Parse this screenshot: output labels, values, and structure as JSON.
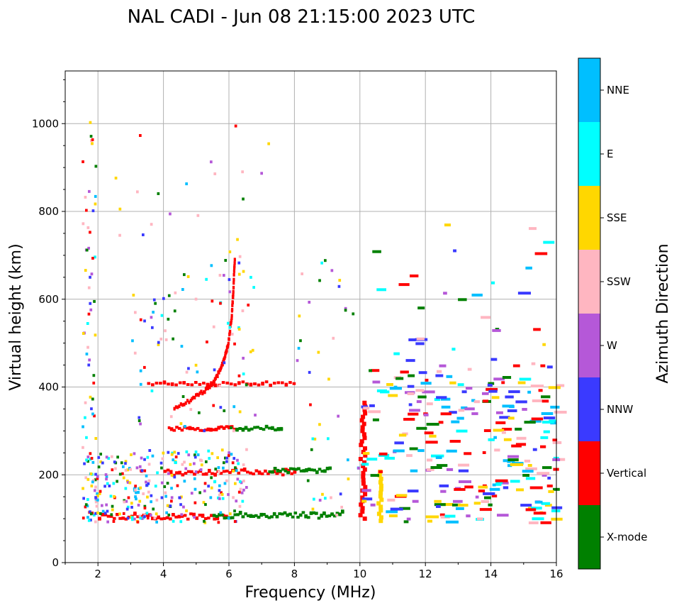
{
  "chart_data": {
    "type": "scatter",
    "title": "NAL CADI - Jun 08 21:15:00 2023 UTC",
    "xlabel": "Frequency (MHz)",
    "ylabel": "Virtual height (km)",
    "xlim": [
      1,
      16
    ],
    "ylim": [
      0,
      1120
    ],
    "x_ticks": [
      2,
      4,
      6,
      8,
      10,
      12,
      14,
      16
    ],
    "y_ticks": [
      0,
      200,
      400,
      600,
      800,
      1000
    ],
    "grid": true,
    "colorbar": {
      "label": "Azimuth Direction",
      "categories": [
        "X-mode",
        "Vertical",
        "NNW",
        "W",
        "SSW",
        "SSE",
        "E",
        "NNE"
      ],
      "colors": [
        "#008000",
        "#ff0000",
        "#3a3aff",
        "#b558d8",
        "#ffb6c1",
        "#ffd700",
        "#00ffff",
        "#00bfff"
      ]
    },
    "traces": [
      {
        "direction": "Vertical",
        "f": [
          2.0,
          6.0
        ],
        "h": 105,
        "step": 0.09,
        "dh": 12
      },
      {
        "direction": "X-mode",
        "f": [
          5.5,
          9.5
        ],
        "h": 108,
        "step": 0.08,
        "dh": 14
      },
      {
        "direction": "Vertical",
        "f": [
          4.0,
          8.0
        ],
        "h": 205,
        "step": 0.09,
        "dh": 12
      },
      {
        "direction": "X-mode",
        "f": [
          7.2,
          9.1
        ],
        "h": 210,
        "step": 0.08,
        "dh": 10
      },
      {
        "direction": "Vertical",
        "f": [
          4.2,
          6.2
        ],
        "h": 305,
        "step": 0.08,
        "dh": 10
      },
      {
        "direction": "X-mode",
        "f": [
          6.2,
          7.6
        ],
        "h": 305,
        "step": 0.09,
        "dh": 8
      },
      {
        "direction": "Vertical",
        "f": [
          3.5,
          8.0
        ],
        "h": 408,
        "step": 0.12,
        "dh": 8
      },
      {
        "direction": "Vertical",
        "f": [
          9.95,
          10.1
        ],
        "h": [
          100,
          370
        ],
        "step": 8,
        "dh": 10
      },
      {
        "direction": "SSE",
        "f": [
          10.5,
          10.6
        ],
        "h": [
          95,
          210
        ],
        "step": 8,
        "dh": 10
      }
    ],
    "curve": {
      "direction": "Vertical",
      "points": [
        [
          4.3,
          350
        ],
        [
          4.8,
          370
        ],
        [
          5.2,
          390
        ],
        [
          5.5,
          410
        ],
        [
          5.7,
          440
        ],
        [
          5.85,
          470
        ],
        [
          5.95,
          500
        ],
        [
          6.05,
          560
        ],
        [
          6.1,
          620
        ],
        [
          6.15,
          700
        ]
      ]
    },
    "scatter_seed": 17
  }
}
